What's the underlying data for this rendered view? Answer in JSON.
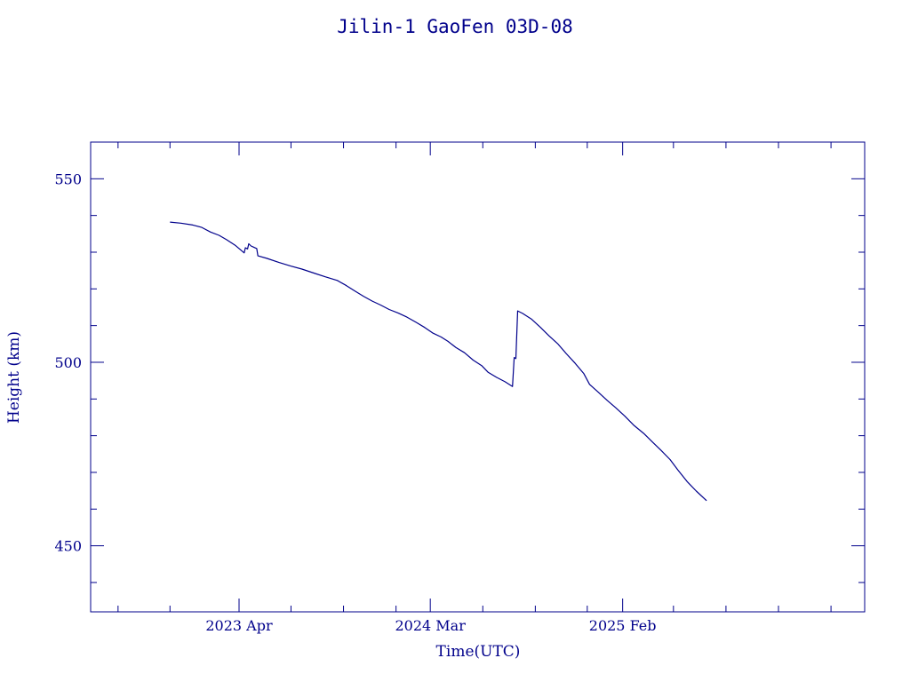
{
  "colors": {
    "ink": "#00008b",
    "background": "#ffffff"
  },
  "chart_data": {
    "type": "line",
    "title": "Jilin-1 GaoFen 03D-08",
    "xlabel": "Time(UTC)",
    "ylabel": "Height (km)",
    "xlim": [
      "2022-07-15",
      "2026-04-01"
    ],
    "ylim": [
      432,
      560
    ],
    "x_ticks": [
      {
        "date": "2023-04-01",
        "label": "2023 Apr"
      },
      {
        "date": "2024-03-01",
        "label": "2024 Mar"
      },
      {
        "date": "2025-02-01",
        "label": "2025 Feb"
      }
    ],
    "x_minor_tick_dates": [
      "2022-09-01",
      "2022-12-01",
      "2023-07-01",
      "2023-10-01",
      "2024-01-01",
      "2024-06-01",
      "2024-09-01",
      "2024-12-01",
      "2025-05-01",
      "2025-08-01",
      "2025-11-01",
      "2026-02-01"
    ],
    "y_ticks": [
      {
        "value": 450,
        "label": "450"
      },
      {
        "value": 500,
        "label": "500"
      },
      {
        "value": 550,
        "label": "550"
      }
    ],
    "y_minor_ticks": [
      440,
      460,
      470,
      480,
      490,
      510,
      520,
      530,
      540
    ],
    "grid": false,
    "legend": "none",
    "series": [
      {
        "points": [
          [
            "2022-12-01",
            538.2
          ],
          [
            "2022-12-20",
            537.9
          ],
          [
            "2023-01-10",
            537.4
          ],
          [
            "2023-01-25",
            536.8
          ],
          [
            "2023-02-10",
            535.5
          ],
          [
            "2023-02-25",
            534.6
          ],
          [
            "2023-03-10",
            533.4
          ],
          [
            "2023-03-25",
            531.9
          ],
          [
            "2023-04-10",
            529.8
          ],
          [
            "2023-04-12",
            531.2
          ],
          [
            "2023-04-16",
            530.9
          ],
          [
            "2023-04-18",
            532.3
          ],
          [
            "2023-04-22",
            531.7
          ],
          [
            "2023-04-26",
            531.4
          ],
          [
            "2023-05-02",
            531.0
          ],
          [
            "2023-05-04",
            529.0
          ],
          [
            "2023-05-20",
            528.3
          ],
          [
            "2023-06-10",
            527.2
          ],
          [
            "2023-07-01",
            526.2
          ],
          [
            "2023-07-20",
            525.4
          ],
          [
            "2023-08-10",
            524.3
          ],
          [
            "2023-08-30",
            523.3
          ],
          [
            "2023-09-20",
            522.3
          ],
          [
            "2023-10-05",
            521.0
          ],
          [
            "2023-10-20",
            519.5
          ],
          [
            "2023-11-05",
            518.0
          ],
          [
            "2023-11-20",
            516.7
          ],
          [
            "2023-12-05",
            515.6
          ],
          [
            "2023-12-20",
            514.4
          ],
          [
            "2024-01-05",
            513.4
          ],
          [
            "2024-01-20",
            512.3
          ],
          [
            "2024-02-05",
            510.9
          ],
          [
            "2024-02-20",
            509.5
          ],
          [
            "2024-03-05",
            508.0
          ],
          [
            "2024-03-20",
            506.9
          ],
          [
            "2024-04-01",
            505.7
          ],
          [
            "2024-04-15",
            504.0
          ],
          [
            "2024-04-30",
            502.6
          ],
          [
            "2024-05-15",
            500.6
          ],
          [
            "2024-05-30",
            499.1
          ],
          [
            "2024-06-10",
            497.3
          ],
          [
            "2024-06-25",
            495.9
          ],
          [
            "2024-07-10",
            494.7
          ],
          [
            "2024-07-23",
            493.4
          ],
          [
            "2024-07-26",
            501.3
          ],
          [
            "2024-07-29",
            501.0
          ],
          [
            "2024-08-01",
            514.0
          ],
          [
            "2024-08-10",
            513.3
          ],
          [
            "2024-08-25",
            511.8
          ],
          [
            "2024-09-10",
            509.5
          ],
          [
            "2024-09-25",
            507.2
          ],
          [
            "2024-10-10",
            505.1
          ],
          [
            "2024-10-25",
            502.4
          ],
          [
            "2024-11-10",
            499.7
          ],
          [
            "2024-11-25",
            496.9
          ],
          [
            "2024-12-05",
            494.0
          ],
          [
            "2024-12-20",
            491.9
          ],
          [
            "2025-01-05",
            489.6
          ],
          [
            "2025-01-20",
            487.6
          ],
          [
            "2025-02-05",
            485.3
          ],
          [
            "2025-02-20",
            482.9
          ],
          [
            "2025-03-10",
            480.6
          ],
          [
            "2025-03-25",
            478.3
          ],
          [
            "2025-04-10",
            475.9
          ],
          [
            "2025-04-25",
            473.5
          ],
          [
            "2025-05-10",
            470.4
          ],
          [
            "2025-05-25",
            467.5
          ],
          [
            "2025-06-10",
            464.9
          ],
          [
            "2025-06-28",
            462.3
          ]
        ]
      }
    ]
  }
}
